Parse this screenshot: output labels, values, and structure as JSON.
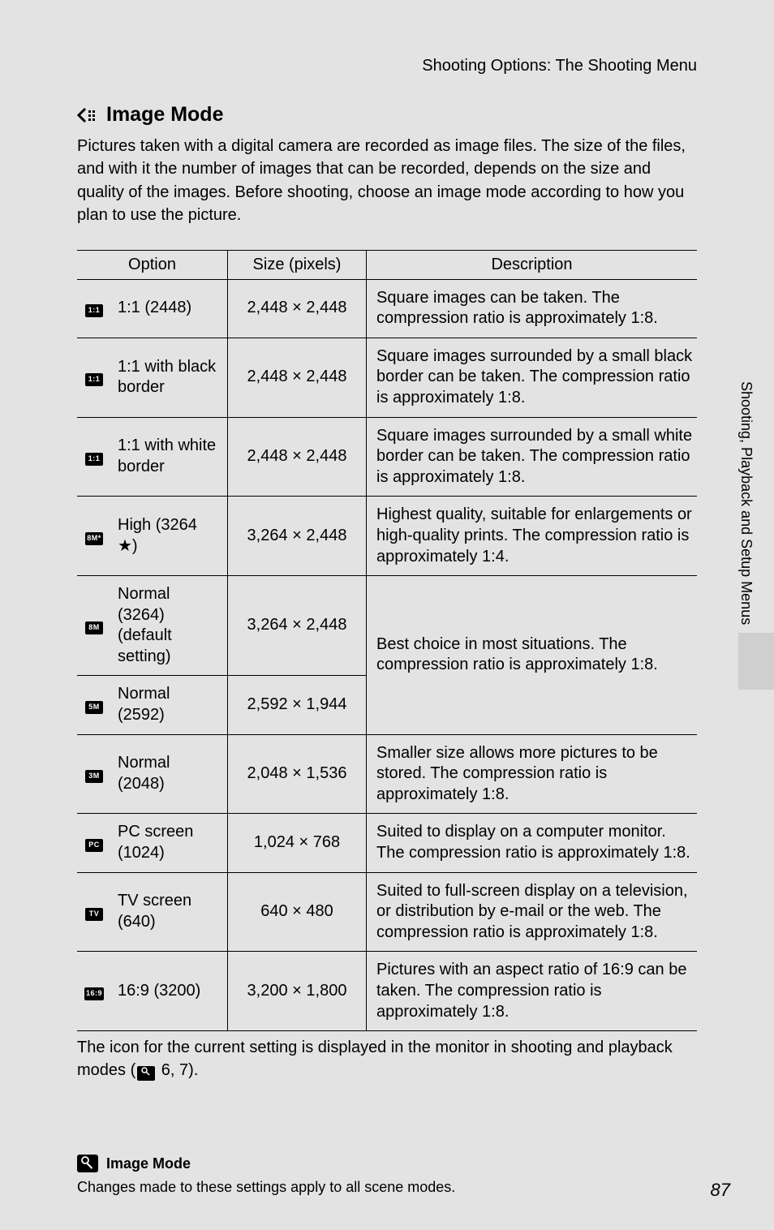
{
  "header": {
    "section": "Shooting Options: The Shooting Menu"
  },
  "title": "Image Mode",
  "intro": "Pictures taken with a digital camera are recorded as image files. The size of the files, and with it the number of images that can be recorded, depends on the size and quality of the images. Before shooting, choose an image mode according to how you plan to use the picture.",
  "table": {
    "headers": {
      "option": "Option",
      "size": "Size (pixels)",
      "desc": "Description"
    },
    "rows": [
      {
        "icon": "1:1",
        "option": "1:1 (2448)",
        "size": "2,448 × 2,448",
        "desc": "Square images can be taken. The compression ratio is approximately 1:8."
      },
      {
        "icon": "1:1",
        "option": "1:1 with black border",
        "size": "2,448 × 2,448",
        "desc": "Square images surrounded by a  small black border can be taken. The compression ratio is approximately 1:8."
      },
      {
        "icon": "1:1",
        "option": "1:1 with white border",
        "size": "2,448 × 2,448",
        "desc": "Square images surrounded by a  small white border can be taken. The compression ratio is approximately 1:8."
      },
      {
        "icon": "8M*",
        "option": "High (3264 ★)",
        "size": "3,264 × 2,448",
        "desc": "Highest quality, suitable for enlargements or high-quality prints. The compression ratio is approximately 1:4."
      },
      {
        "icon": "8M",
        "option": "Normal (3264) (default setting)",
        "size": "3,264 × 2,448",
        "desc": "Best choice in most situations. The compression ratio is approximately 1:8.",
        "merge_with_next": true
      },
      {
        "icon": "5M",
        "option": "Normal (2592)",
        "size": "2,592 × 1,944",
        "merged": true
      },
      {
        "icon": "3M",
        "option": "Normal (2048)",
        "size": "2,048 × 1,536",
        "desc": "Smaller size allows more pictures to be stored. The compression ratio is approximately 1:8."
      },
      {
        "icon": "PC",
        "option": "PC screen (1024)",
        "size": "1,024 × 768",
        "desc": "Suited to display on a computer monitor. The compression ratio is approximately 1:8."
      },
      {
        "icon": "TV",
        "option": "TV screen (640)",
        "size": "640 × 480",
        "desc": "Suited to full-screen display on a television, or distribution by e-mail or the web. The compression ratio is approximately 1:8."
      },
      {
        "icon": "16:9",
        "option": "16:9 (3200)",
        "size": "3,200 × 1,800",
        "desc": "Pictures with an aspect ratio of 16:9 can be taken. The compression ratio is approximately 1:8."
      }
    ]
  },
  "after": {
    "text_before_ref": "The icon for the current setting is displayed in the monitor in shooting and playback modes (",
    "ref_pages": " 6, 7).",
    "ref_icon_glyph": "A"
  },
  "note": {
    "title": "Image Mode",
    "body": "Changes made to these settings apply to all scene modes."
  },
  "side_label": "Shooting, Playback and Setup Menus",
  "page_number": "87"
}
